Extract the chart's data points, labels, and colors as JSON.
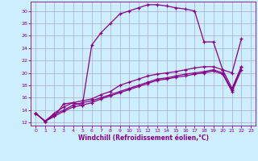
{
  "xlabel": "Windchill (Refroidissement éolien,°C)",
  "bg_color": "#cceeff",
  "grid_color": "#aaaacc",
  "line_color": "#880088",
  "xlim": [
    -0.5,
    23.5
  ],
  "ylim": [
    11.5,
    31.5
  ],
  "yticks": [
    12,
    14,
    16,
    18,
    20,
    22,
    24,
    26,
    28,
    30
  ],
  "xticks": [
    0,
    1,
    2,
    3,
    4,
    5,
    6,
    7,
    8,
    9,
    10,
    11,
    12,
    13,
    14,
    15,
    16,
    17,
    18,
    19,
    20,
    21,
    22,
    23
  ],
  "curve0_x": [
    0,
    1,
    2,
    3,
    4,
    5,
    6,
    7,
    8,
    9,
    10,
    11,
    12,
    13,
    14,
    15,
    16,
    17,
    18,
    19,
    20,
    21,
    22
  ],
  "curve0_y": [
    13.5,
    12.2,
    13.0,
    15.0,
    15.2,
    14.8,
    24.5,
    26.5,
    28.0,
    29.5,
    30.0,
    30.5,
    31.0,
    31.0,
    30.8,
    30.5,
    30.3,
    30.0,
    25.0,
    25.0,
    20.5,
    20.0,
    25.5
  ],
  "curve1_x": [
    0,
    1,
    2,
    3,
    4,
    5,
    6,
    7,
    8,
    9,
    10,
    11,
    12,
    13,
    14,
    15,
    16,
    17,
    18,
    19,
    20,
    21,
    22
  ],
  "curve1_y": [
    13.5,
    12.2,
    13.5,
    14.5,
    15.2,
    15.5,
    15.8,
    16.5,
    17.0,
    18.0,
    18.5,
    19.0,
    19.5,
    19.8,
    20.0,
    20.2,
    20.5,
    20.8,
    21.0,
    21.0,
    20.5,
    17.5,
    21.0
  ],
  "curve2_x": [
    0,
    1,
    2,
    3,
    4,
    5,
    6,
    7,
    8,
    9,
    10,
    11,
    12,
    13,
    14,
    15,
    16,
    17,
    18,
    19,
    20,
    21,
    22
  ],
  "curve2_y": [
    13.5,
    12.2,
    13.3,
    14.0,
    14.8,
    15.2,
    15.5,
    16.0,
    16.5,
    17.0,
    17.5,
    18.0,
    18.5,
    19.0,
    19.2,
    19.5,
    19.8,
    20.0,
    20.2,
    20.5,
    20.0,
    17.2,
    21.0
  ],
  "curve3_x": [
    0,
    1,
    2,
    3,
    4,
    5,
    6,
    7,
    8,
    9,
    10,
    11,
    12,
    13,
    14,
    15,
    16,
    17,
    18,
    19,
    20,
    21,
    22
  ],
  "curve3_y": [
    13.5,
    12.2,
    13.0,
    13.8,
    14.5,
    14.8,
    15.2,
    15.8,
    16.3,
    16.8,
    17.3,
    17.8,
    18.3,
    18.8,
    19.0,
    19.3,
    19.5,
    19.8,
    20.0,
    20.3,
    19.8,
    17.0,
    20.5
  ]
}
